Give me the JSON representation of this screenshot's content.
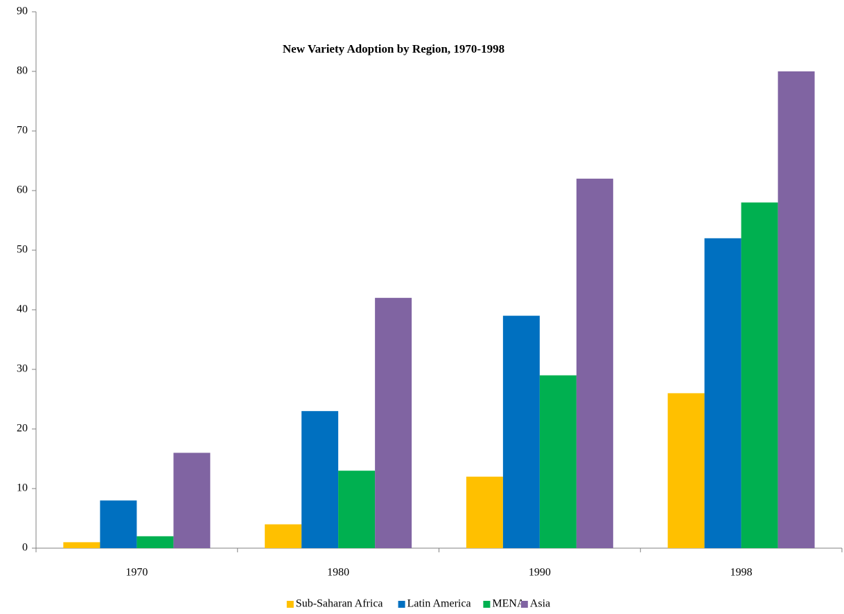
{
  "chart_data": {
    "type": "bar",
    "title": "New Variety Adoption by Region, 1970-1998",
    "categories": [
      "1970",
      "1980",
      "1990",
      "1998"
    ],
    "series": [
      {
        "name": "Sub-Saharan Africa",
        "color": "#ffc000",
        "values": [
          1,
          4,
          12,
          26
        ]
      },
      {
        "name": "Latin America",
        "color": "#0070c0",
        "values": [
          8,
          23,
          39,
          52
        ]
      },
      {
        "name": "MENA",
        "color": "#00b050",
        "values": [
          2,
          13,
          29,
          58
        ]
      },
      {
        "name": "Asia",
        "color": "#8064a2",
        "values": [
          16,
          42,
          62,
          80
        ]
      }
    ],
    "ylim": [
      0,
      90
    ],
    "yticks": [
      0,
      10,
      20,
      30,
      40,
      50,
      60,
      70,
      80,
      90
    ],
    "grid": false,
    "legend": "bottom"
  }
}
